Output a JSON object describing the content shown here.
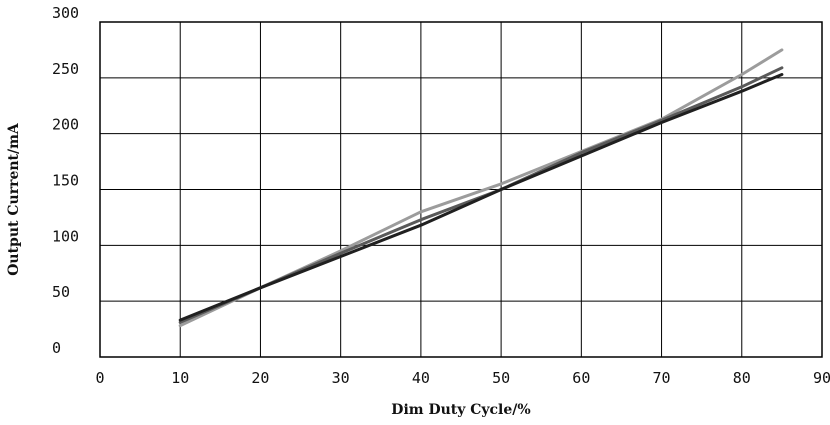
{
  "chart_data": {
    "type": "line",
    "xlabel": "Dim Duty Cycle/%",
    "ylabel": "Output Current/mA",
    "xlim": [
      0,
      90
    ],
    "ylim": [
      0,
      300
    ],
    "x_ticks": [
      "0",
      "10",
      "20",
      "30",
      "40",
      "50",
      "60",
      "70",
      "80",
      "90"
    ],
    "y_ticks": [
      "0",
      "50",
      "100",
      "150",
      "200",
      "250",
      "300"
    ],
    "grid": true,
    "series": [
      {
        "color": "#202020",
        "points": [
          [
            10,
            33
          ],
          [
            20,
            62
          ],
          [
            30,
            90
          ],
          [
            40,
            118
          ],
          [
            50,
            150
          ],
          [
            60,
            180
          ],
          [
            70,
            210
          ],
          [
            80,
            238
          ],
          [
            85,
            253
          ]
        ]
      },
      {
        "color": "#5a5a5a",
        "points": [
          [
            10,
            31
          ],
          [
            20,
            62
          ],
          [
            30,
            93
          ],
          [
            40,
            123
          ],
          [
            50,
            150
          ],
          [
            60,
            183
          ],
          [
            70,
            212
          ],
          [
            80,
            242
          ],
          [
            85,
            259
          ]
        ]
      },
      {
        "color": "#9c9c9c",
        "points": [
          [
            10,
            28
          ],
          [
            20,
            62
          ],
          [
            30,
            95
          ],
          [
            40,
            130
          ],
          [
            50,
            155
          ],
          [
            60,
            184
          ],
          [
            70,
            213
          ],
          [
            80,
            253
          ],
          [
            85,
            275
          ]
        ]
      }
    ]
  }
}
